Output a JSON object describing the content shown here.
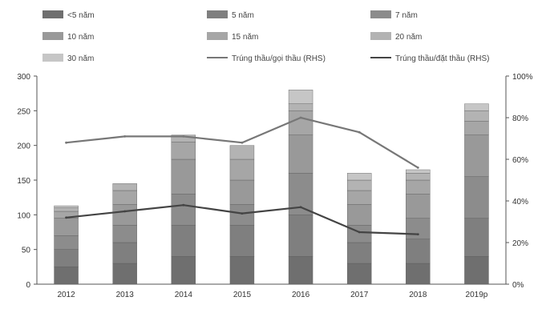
{
  "chart_data": {
    "type": "bar",
    "stacked": true,
    "categories": [
      "2012",
      "2013",
      "2014",
      "2015",
      "2016",
      "2017",
      "2018",
      "2019p"
    ],
    "series": [
      {
        "name": "<5 năm",
        "color": "#6f6f6f",
        "values": [
          25,
          30,
          40,
          40,
          40,
          30,
          30,
          40
        ]
      },
      {
        "name": "5 năm",
        "color": "#7f7f7f",
        "values": [
          25,
          30,
          45,
          45,
          60,
          30,
          35,
          55
        ]
      },
      {
        "name": "7 năm",
        "color": "#8c8c8c",
        "values": [
          20,
          25,
          45,
          30,
          60,
          25,
          30,
          60
        ]
      },
      {
        "name": "10 năm",
        "color": "#999999",
        "values": [
          25,
          30,
          50,
          35,
          55,
          30,
          35,
          60
        ]
      },
      {
        "name": "15 năm",
        "color": "#a6a6a6",
        "values": [
          10,
          20,
          25,
          30,
          35,
          20,
          20,
          20
        ]
      },
      {
        "name": "20 năm",
        "color": "#b3b3b3",
        "values": [
          5,
          10,
          10,
          20,
          10,
          15,
          10,
          15
        ]
      },
      {
        "name": "30 năm",
        "color": "#c6c6c6",
        "values": [
          3,
          0,
          0,
          0,
          20,
          10,
          5,
          10
        ]
      }
    ],
    "line_series": [
      {
        "name": "Trúng thầu/gọi thầu (RHS)",
        "color": "#777777",
        "values": [
          68,
          71,
          71,
          68,
          80,
          73,
          56
        ]
      },
      {
        "name": "Trúng thầu/đặt thầu (RHS)",
        "color": "#444444",
        "values": [
          32,
          35,
          38,
          34,
          37,
          25,
          24
        ]
      }
    ],
    "y_left": {
      "min": 0,
      "max": 300,
      "ticks": [
        "0",
        "50",
        "100",
        "150",
        "200",
        "250",
        "300"
      ]
    },
    "y_right": {
      "min": 0,
      "max": 100,
      "ticks": [
        "0%",
        "20%",
        "40%",
        "60%",
        "80%",
        "100%"
      ]
    },
    "xlabel": "",
    "ylabel": "",
    "legend_position": "top",
    "grid": false
  }
}
